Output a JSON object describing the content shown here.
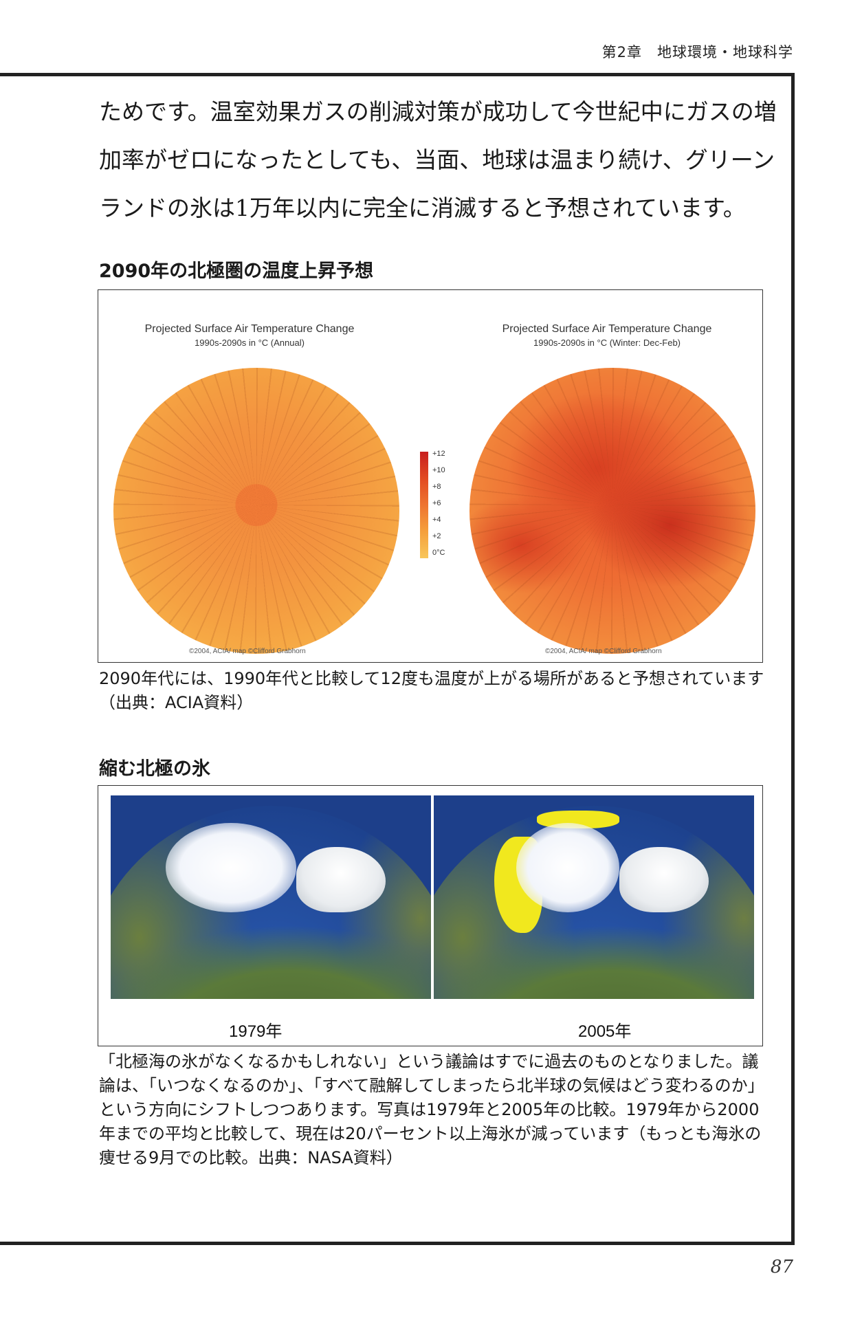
{
  "running_head": "第2章　地球環境・地球科学",
  "intro_text": "ためです。温室効果ガスの削減対策が成功して今世紀中にガスの増加率がゼロになったとしても、当面、地球は温まり続け、グリーンランドの氷は1万年以内に完全に消滅すると予想されています。",
  "figure1": {
    "title": "2090年の北極圏の温度上昇予想",
    "left_map": {
      "title": "Projected Surface Air Temperature Change",
      "subtitle": "1990s-2090s in °C (Annual)",
      "credit": "©2004, ACIA/ map ©Clifford Grabhorn"
    },
    "right_map": {
      "title": "Projected Surface Air Temperature Change",
      "subtitle": "1990s-2090s in °C (Winter: Dec-Feb)",
      "credit": "©2004, ACIA/ map ©Clifford Grabhorn"
    },
    "scale_labels": [
      "+12",
      "+10",
      "+8",
      "+6",
      "+4",
      "+2",
      "0°C"
    ],
    "scale_colors": [
      "#c81e1e",
      "#f8c65a"
    ],
    "caption": "2090年代には、1990年代と比較して12度も温度が上がる場所があると予想されています（出典：ACIA資料）"
  },
  "figure2": {
    "title": "縮む北極の氷",
    "left_label": "1979年",
    "right_label": "2005年",
    "caption": "「北極海の氷がなくなるかもしれない」という議論はすでに過去のものとなりました。議論は、「いつなくなるのか」、「すべて融解してしまったら北半球の気候はどう変わるのか」という方向にシフトしつつあります。写真は1979年と2005年の比較。1979年から2000年までの平均と比較して、現在は20パーセント以上海氷が減っています（もっとも海氷の痩せる9月での比較。出典：NASA資料）",
    "loss_color": "#f1e81e"
  },
  "page_number": "87"
}
